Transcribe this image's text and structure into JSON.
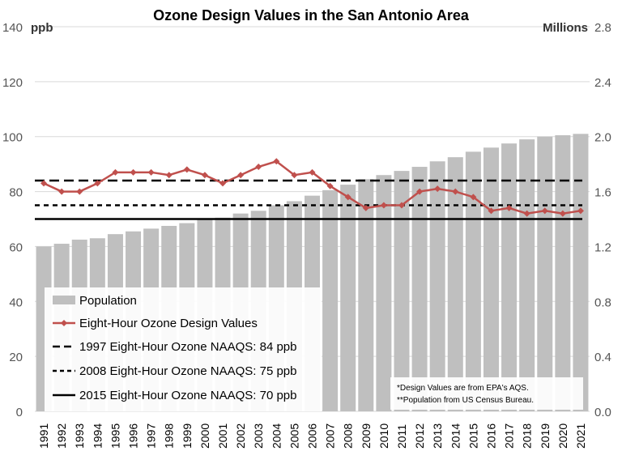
{
  "chart_data": {
    "type": "bar+line",
    "title": "Ozone Design Values in the San Antonio Area",
    "left_axis": {
      "unit_label": "ppb",
      "ylim": [
        0,
        140
      ],
      "ticks": [
        "0",
        "20",
        "40",
        "60",
        "80",
        "100",
        "120",
        "140"
      ]
    },
    "right_axis": {
      "unit_label": "Millions",
      "ylim": [
        0,
        2.8
      ],
      "ticks": [
        "0.0",
        "0.4",
        "0.8",
        "1.2",
        "1.6",
        "2.0",
        "2.4",
        "2.8"
      ]
    },
    "categories": [
      "1991",
      "1992",
      "1993",
      "1994",
      "1995",
      "1996",
      "1997",
      "1998",
      "1999",
      "2000",
      "2001",
      "2002",
      "2003",
      "2004",
      "2005",
      "2006",
      "2007",
      "2008",
      "2009",
      "2010",
      "2011",
      "2012",
      "2013",
      "2014",
      "2015",
      "2016",
      "2017",
      "2018",
      "2019",
      "2020",
      "2021"
    ],
    "series": [
      {
        "name": "Population",
        "kind": "bar",
        "axis": "right",
        "color": "#bfbfbf",
        "values": [
          1.2,
          1.22,
          1.25,
          1.26,
          1.29,
          1.31,
          1.33,
          1.35,
          1.37,
          1.4,
          1.41,
          1.44,
          1.46,
          1.5,
          1.53,
          1.57,
          1.61,
          1.65,
          1.69,
          1.72,
          1.75,
          1.78,
          1.82,
          1.85,
          1.89,
          1.92,
          1.95,
          1.98,
          2.0,
          2.01,
          2.02
        ]
      },
      {
        "name": "Eight-Hour Ozone Design Values",
        "kind": "line",
        "axis": "left",
        "color": "#c0504d",
        "values": [
          83,
          80,
          80,
          83,
          87,
          87,
          87,
          86,
          88,
          86,
          83,
          86,
          89,
          91,
          86,
          87,
          82,
          78,
          74,
          75,
          75,
          80,
          81,
          80,
          78,
          73,
          74,
          72,
          73,
          72,
          73
        ]
      }
    ],
    "reference_lines": [
      {
        "name": "1997 Eight-Hour Ozone NAAQS: 84 ppb",
        "value": 84,
        "style": "long-dash",
        "color": "#000000"
      },
      {
        "name": "2008 Eight-Hour Ozone NAAQS: 75 ppb",
        "value": 75,
        "style": "short-dash",
        "color": "#000000"
      },
      {
        "name": "2015 Eight-Hour Ozone NAAQS: 70 ppb",
        "value": 70,
        "style": "solid",
        "color": "#000000"
      }
    ],
    "legend": {
      "placement": "bottom-left",
      "entries": [
        "Population",
        "Eight-Hour Ozone Design Values",
        "1997 Eight-Hour Ozone NAAQS: 84 ppb",
        "2008 Eight-Hour Ozone NAAQS: 75 ppb",
        "2015 Eight-Hour Ozone NAAQS: 70 ppb"
      ]
    },
    "notes": [
      "*Design Values are from EPA's AQS.",
      "**Population from US Census Bureau."
    ],
    "grid": true
  }
}
